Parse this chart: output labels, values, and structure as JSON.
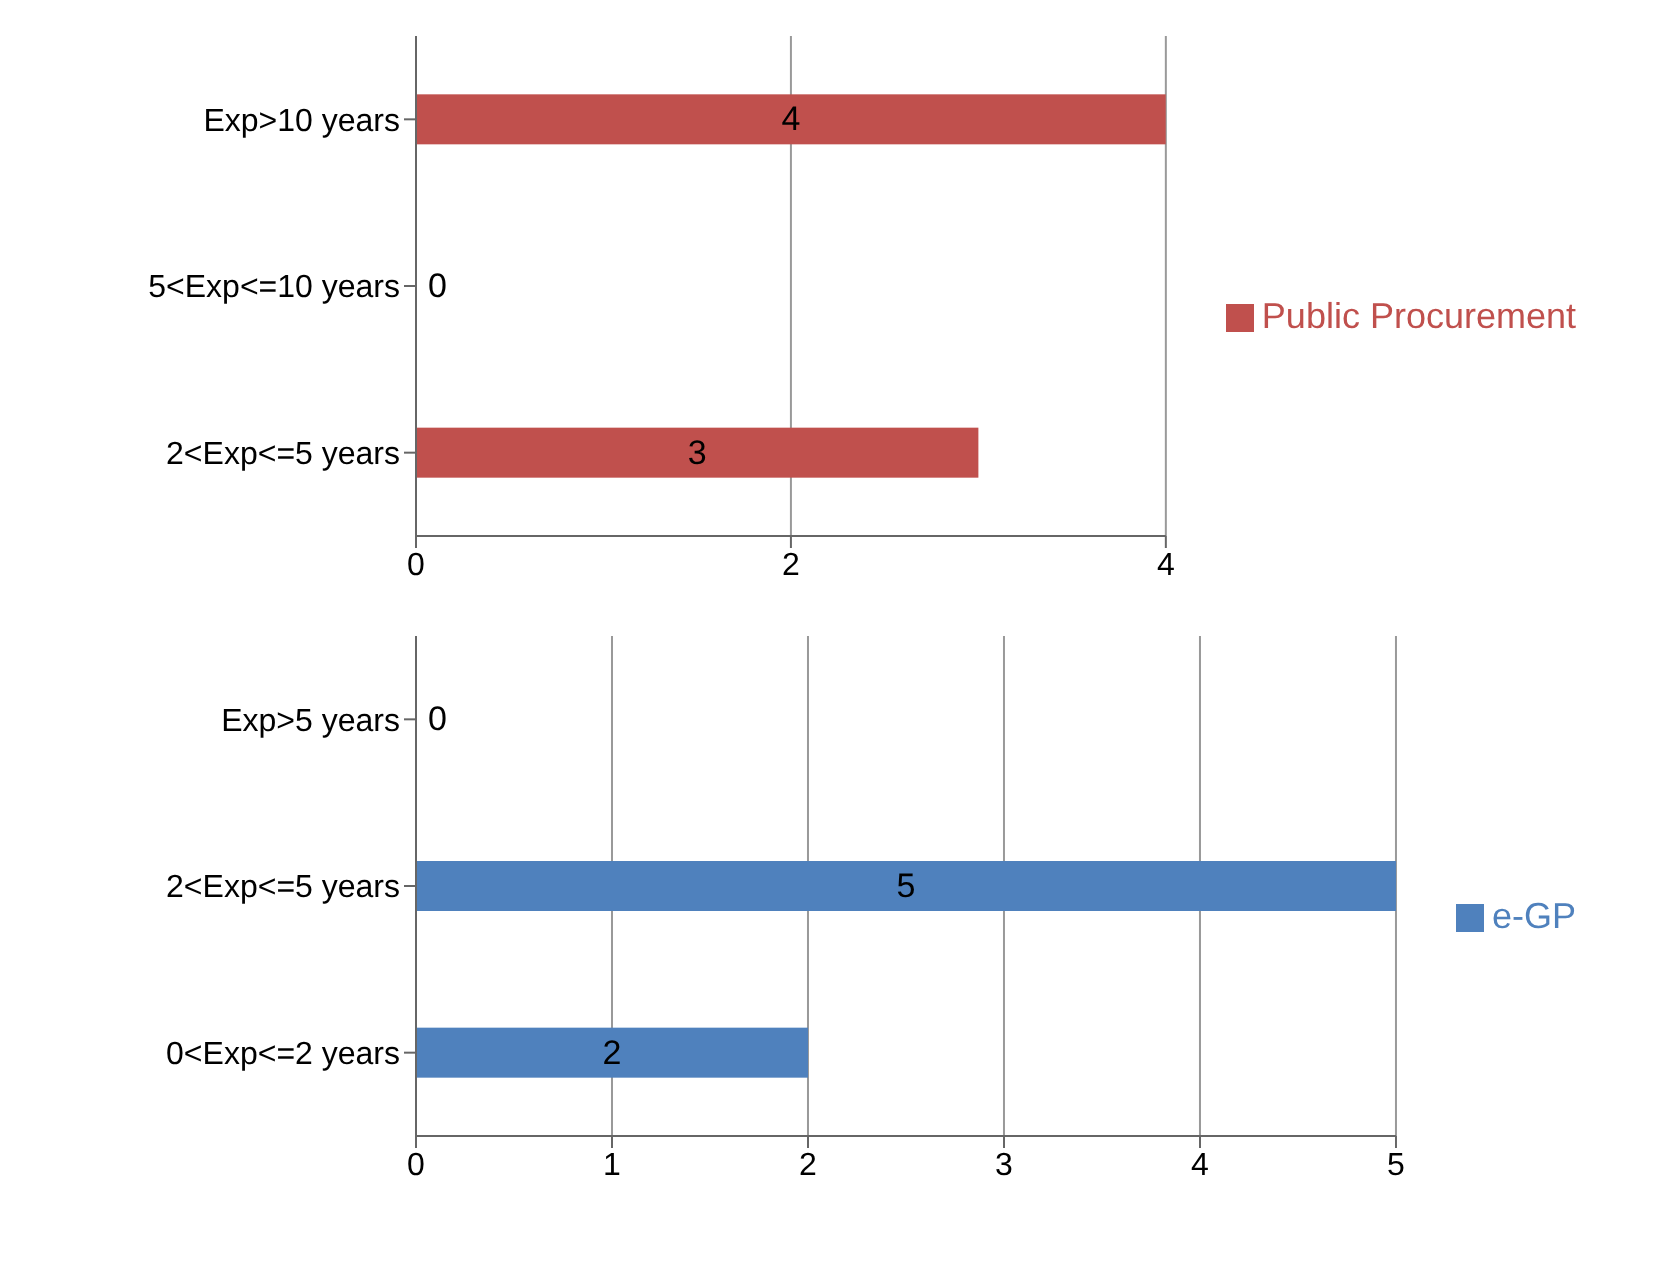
{
  "chart_data": [
    {
      "type": "bar",
      "orientation": "horizontal",
      "categories": [
        "Exp>10 years",
        "5<Exp<=10 years",
        "2<Exp<=5 years"
      ],
      "series": [
        {
          "name": "Public Procurement",
          "color": "#c0504d",
          "values": [
            4,
            0,
            3
          ]
        }
      ],
      "xlim": [
        0,
        4
      ],
      "xticks": [
        0,
        2,
        4
      ],
      "grid": "x",
      "legend": "right",
      "data_labels": true
    },
    {
      "type": "bar",
      "orientation": "horizontal",
      "categories": [
        "Exp>5 years",
        "2<Exp<=5 years",
        "0<Exp<=2 years"
      ],
      "series": [
        {
          "name": "e-GP",
          "color": "#4f81bd",
          "values": [
            0,
            5,
            2
          ]
        }
      ],
      "xlim": [
        0,
        5
      ],
      "xticks": [
        0,
        1,
        2,
        3,
        4,
        5
      ],
      "grid": "x",
      "legend": "right",
      "data_labels": true
    }
  ]
}
